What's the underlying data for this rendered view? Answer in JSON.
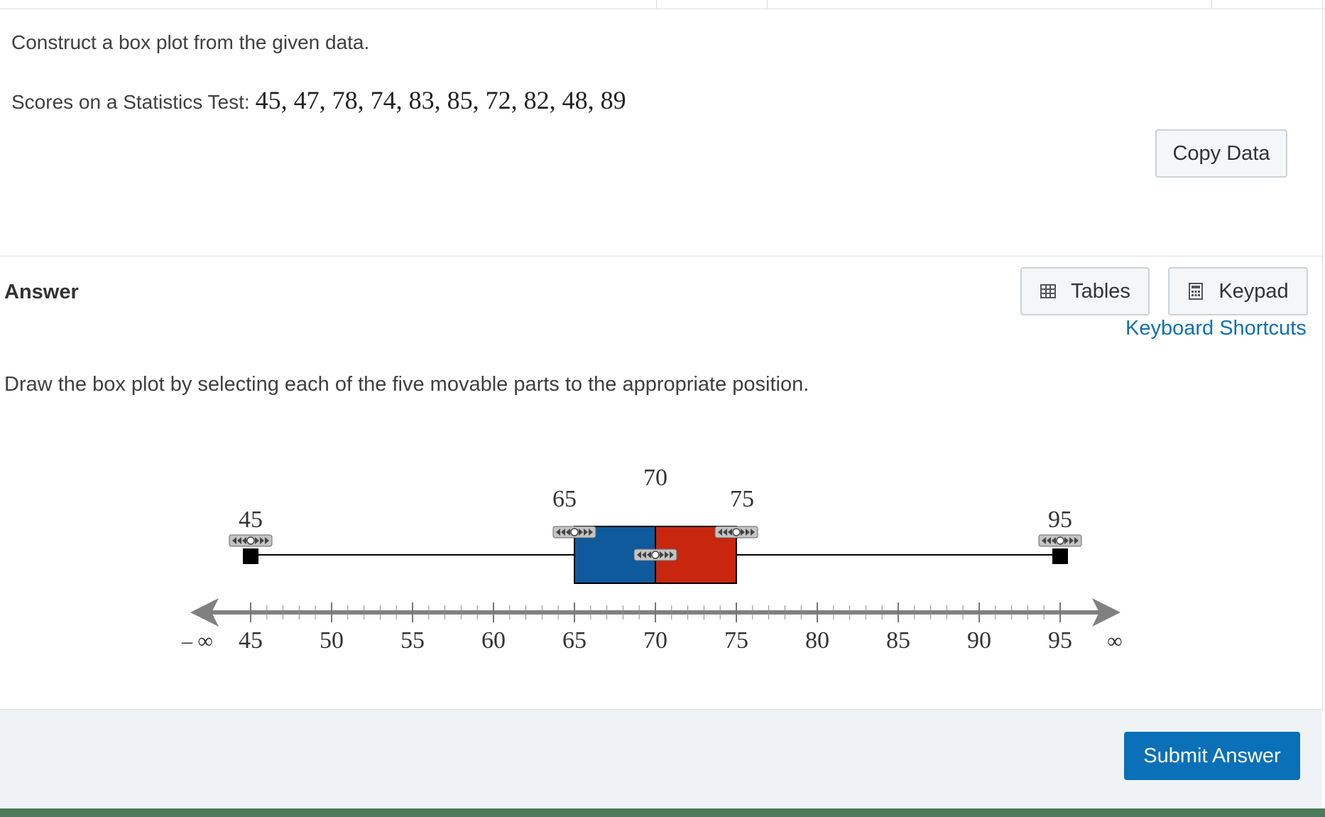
{
  "question": {
    "prompt": "Construct a box plot from the given data.",
    "scores_label": "Scores on a Statistics Test:",
    "scores_values": "45, 47, 78, 74, 83, 85, 72, 82, 48, 89"
  },
  "buttons": {
    "copy_data": "Copy Data",
    "tables": "Tables",
    "keypad": "Keypad",
    "submit": "Submit Answer"
  },
  "answer": {
    "heading": "Answer",
    "keyboard_shortcuts": "Keyboard Shortcuts",
    "instruction": "Draw the box plot by selecting each of the five movable parts to the appropriate position."
  },
  "boxplot": {
    "min": 45,
    "q1": 65,
    "median": 70,
    "q3": 75,
    "max": 95,
    "min_label": "45",
    "q1_label": "65",
    "median_label": "70",
    "q3_label": "75",
    "max_label": "95",
    "colors": {
      "left_box": "#0e5a9c",
      "right_box": "#c8260f"
    }
  },
  "number_line": {
    "from": 45,
    "to": 95,
    "tick_labels": [
      "45",
      "50",
      "55",
      "60",
      "65",
      "70",
      "75",
      "80",
      "85",
      "90",
      "95"
    ],
    "neg_inf_label": "– ∞",
    "pos_inf_label": "∞"
  }
}
